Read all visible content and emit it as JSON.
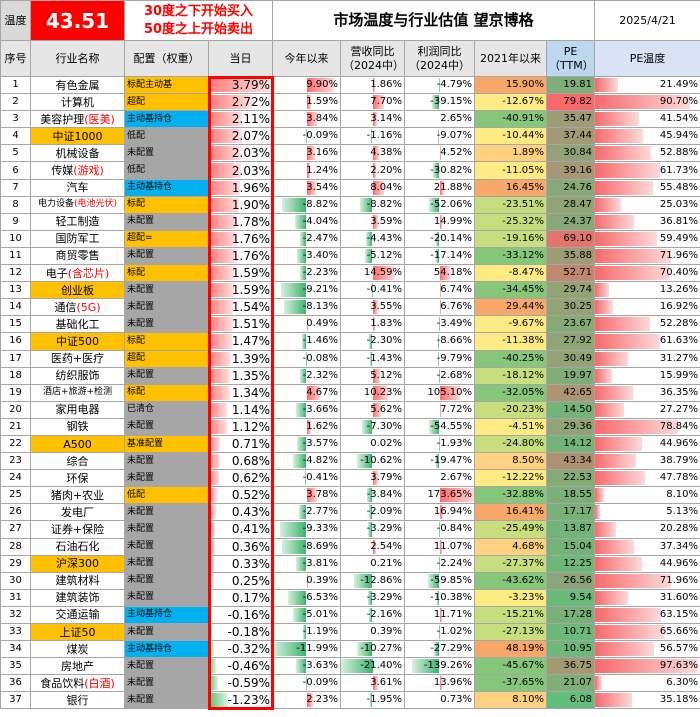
{
  "top": {
    "temp_label": "温度",
    "temp_value": "43.51",
    "line1": "30度之下开始买入",
    "line2": "50度之上开始卖出",
    "title": "市场温度与行业估值 望京博格",
    "date": "2025/4/21"
  },
  "headers": [
    "序号",
    "行业名称",
    "配置（权重）",
    "当日",
    "今年以来",
    "营收同比\n（2024中）",
    "利润同比\n（2024中）",
    "2021年以来",
    "PE\n（TTM）",
    "PE温度"
  ],
  "rows": [
    {
      "n": "1",
      "name": "有色金属",
      "cfg": "标配主动基",
      "cfgc": "#ffc000",
      "day": "3.79%",
      "ytd": "9.90%",
      "ytdv": 9.9,
      "rev": "1.86%",
      "revv": 1.86,
      "prof": "-4.79%",
      "profv": -4.79,
      "y21": "15.90%",
      "y21v": 15.9,
      "pe": "19.81",
      "pev": 19.81,
      "pt": "21.49%",
      "ptv": 21.49
    },
    {
      "n": "2",
      "name": "计算机",
      "cfg": "超配",
      "cfgc": "#ffc000",
      "day": "2.72%",
      "ytd": "1.59%",
      "ytdv": 1.59,
      "rev": "7.70%",
      "revv": 7.7,
      "prof": "-39.15%",
      "profv": -39.15,
      "y21": "-12.67%",
      "y21v": -12.67,
      "pe": "79.82",
      "pev": 79.82,
      "pt": "90.70%",
      "ptv": 90.7
    },
    {
      "n": "3",
      "name": "美容护理",
      "hl": "(医美)",
      "cfg": "主动基持仓",
      "cfgc": "#00b0f0",
      "day": "2.11%",
      "ytd": "3.84%",
      "ytdv": 3.84,
      "rev": "3.14%",
      "revv": 3.14,
      "prof": "2.65%",
      "profv": 2.65,
      "y21": "-40.91%",
      "y21v": -40.91,
      "pe": "35.47",
      "pev": 35.47,
      "pt": "41.54%",
      "ptv": 41.54
    },
    {
      "n": "4",
      "name": "中证1000",
      "namec": "#ffc000",
      "cfg": "低配",
      "cfgc": "#a6a6a6",
      "day": "2.07%",
      "ytd": "-0.09%",
      "ytdv": -0.09,
      "rev": "-1.16%",
      "revv": -1.16,
      "prof": "-9.07%",
      "profv": -9.07,
      "y21": "-10.44%",
      "y21v": -10.44,
      "pe": "37.44",
      "pev": 37.44,
      "pt": "45.94%",
      "ptv": 45.94
    },
    {
      "n": "5",
      "name": "机械设备",
      "cfg": "未配置",
      "cfgc": "#a6a6a6",
      "day": "2.03%",
      "ytd": "3.16%",
      "ytdv": 3.16,
      "rev": "4.38%",
      "revv": 4.38,
      "prof": "4.52%",
      "profv": 4.52,
      "y21": "1.89%",
      "y21v": 1.89,
      "pe": "30.84",
      "pev": 30.84,
      "pt": "52.88%",
      "ptv": 52.88
    },
    {
      "n": "6",
      "name": "传媒",
      "hl": "(游戏)",
      "cfg": "低配",
      "cfgc": "#a6a6a6",
      "day": "2.03%",
      "ytd": "1.24%",
      "ytdv": 1.24,
      "rev": "2.20%",
      "revv": 2.2,
      "prof": "-30.82%",
      "profv": -30.82,
      "y21": "-11.05%",
      "y21v": -11.05,
      "pe": "39.16",
      "pev": 39.16,
      "pt": "61.73%",
      "ptv": 61.73
    },
    {
      "n": "7",
      "name": "汽车",
      "cfg": "主动基持仓",
      "cfgc": "#00b0f0",
      "day": "1.96%",
      "ytd": "3.54%",
      "ytdv": 3.54,
      "rev": "8.04%",
      "revv": 8.04,
      "prof": "21.88%",
      "profv": 21.88,
      "y21": "16.45%",
      "y21v": 16.45,
      "pe": "24.76",
      "pev": 24.76,
      "pt": "55.48%",
      "ptv": 55.48
    },
    {
      "n": "8",
      "name": "电力设备",
      "hl": "(电池光伏)",
      "small": true,
      "cfg": "标配",
      "cfgc": "#ffc000",
      "day": "1.90%",
      "ytd": "-8.82%",
      "ytdv": -8.82,
      "rev": "-8.82%",
      "revv": -8.82,
      "prof": "-52.06%",
      "profv": -52.06,
      "y21": "-23.51%",
      "y21v": -23.51,
      "pe": "28.47",
      "pev": 28.47,
      "pt": "25.03%",
      "ptv": 25.03
    },
    {
      "n": "9",
      "name": "轻工制造",
      "cfg": "未配置",
      "cfgc": "#a6a6a6",
      "day": "1.78%",
      "ytd": "-4.04%",
      "ytdv": -4.04,
      "rev": "3.59%",
      "revv": 3.59,
      "prof": "14.99%",
      "profv": 14.99,
      "y21": "-25.32%",
      "y21v": -25.32,
      "pe": "24.37",
      "pev": 24.37,
      "pt": "36.81%",
      "ptv": 36.81
    },
    {
      "n": "10",
      "name": "国防军工",
      "cfg": "超配=",
      "cfgc": "#ffc000",
      "day": "1.76%",
      "ytd": "-2.47%",
      "ytdv": -2.47,
      "rev": "-4.43%",
      "revv": -4.43,
      "prof": "-20.14%",
      "profv": -20.14,
      "y21": "-19.16%",
      "y21v": -19.16,
      "pe": "69.10",
      "pev": 69.1,
      "pt": "59.49%",
      "ptv": 59.49
    },
    {
      "n": "11",
      "name": "商贸零售",
      "cfg": "未配置",
      "cfgc": "#a6a6a6",
      "day": "1.76%",
      "ytd": "-3.40%",
      "ytdv": -3.4,
      "rev": "-5.12%",
      "revv": -5.12,
      "prof": "-17.14%",
      "profv": -17.14,
      "y21": "-33.12%",
      "y21v": -33.12,
      "pe": "35.88",
      "pev": 35.88,
      "pt": "71.96%",
      "ptv": 71.96
    },
    {
      "n": "12",
      "name": "电子",
      "hl": "(含芯片)",
      "cfg": "标配",
      "cfgc": "#ffc000",
      "day": "1.59%",
      "ytd": "-2.23%",
      "ytdv": -2.23,
      "rev": "14.59%",
      "revv": 14.59,
      "prof": "54.18%",
      "profv": 54.18,
      "y21": "-8.47%",
      "y21v": -8.47,
      "pe": "52.71",
      "pev": 52.71,
      "pt": "70.40%",
      "ptv": 70.4
    },
    {
      "n": "13",
      "name": "创业板",
      "namec": "#ffc000",
      "cfg": "未配置",
      "cfgc": "#a6a6a6",
      "day": "1.59%",
      "ytd": "-9.21%",
      "ytdv": -9.21,
      "rev": "-0.41%",
      "revv": -0.41,
      "prof": "6.74%",
      "profv": 6.74,
      "y21": "-34.45%",
      "y21v": -34.45,
      "pe": "29.74",
      "pev": 29.74,
      "pt": "13.26%",
      "ptv": 13.26
    },
    {
      "n": "14",
      "name": "通信",
      "hl": "(5G)",
      "cfg": "未配置",
      "cfgc": "#a6a6a6",
      "day": "1.54%",
      "ytd": "-8.13%",
      "ytdv": -8.13,
      "rev": "3.55%",
      "revv": 3.55,
      "prof": "6.76%",
      "profv": 6.76,
      "y21": "29.44%",
      "y21v": 29.44,
      "pe": "30.25",
      "pev": 30.25,
      "pt": "16.92%",
      "ptv": 16.92
    },
    {
      "n": "15",
      "name": "基础化工",
      "cfg": "未配置",
      "cfgc": "#a6a6a6",
      "day": "1.51%",
      "ytd": "0.49%",
      "ytdv": 0.49,
      "rev": "1.83%",
      "revv": 1.83,
      "prof": "-3.49%",
      "profv": -3.49,
      "y21": "-9.67%",
      "y21v": -9.67,
      "pe": "23.67",
      "pev": 23.67,
      "pt": "52.28%",
      "ptv": 52.28
    },
    {
      "n": "16",
      "name": "中证500",
      "namec": "#ffc000",
      "cfg": "标配",
      "cfgc": "#ffc000",
      "day": "1.47%",
      "ytd": "-1.46%",
      "ytdv": -1.46,
      "rev": "-2.30%",
      "revv": -2.3,
      "prof": "-8.66%",
      "profv": -8.66,
      "y21": "-11.38%",
      "y21v": -11.38,
      "pe": "27.92",
      "pev": 27.92,
      "pt": "61.63%",
      "ptv": 61.63
    },
    {
      "n": "17",
      "name": "医药+医疗",
      "cfg": "超配",
      "cfgc": "#ffc000",
      "day": "1.39%",
      "ytd": "-0.08%",
      "ytdv": -0.08,
      "rev": "-1.43%",
      "revv": -1.43,
      "prof": "-9.79%",
      "profv": -9.79,
      "y21": "-40.25%",
      "y21v": -40.25,
      "pe": "30.49",
      "pev": 30.49,
      "pt": "31.27%",
      "ptv": 31.27
    },
    {
      "n": "18",
      "name": "纺织服饰",
      "cfg": "未配置",
      "cfgc": "#a6a6a6",
      "day": "1.35%",
      "ytd": "-2.32%",
      "ytdv": -2.32,
      "rev": "5.12%",
      "revv": 5.12,
      "prof": "-2.68%",
      "profv": -2.68,
      "y21": "-18.12%",
      "y21v": -18.12,
      "pe": "19.97",
      "pev": 19.97,
      "pt": "15.99%",
      "ptv": 15.99
    },
    {
      "n": "19",
      "name": "酒店+旅游+检测",
      "small": true,
      "cfg": "标配",
      "cfgc": "#ffc000",
      "day": "1.34%",
      "ytd": "4.67%",
      "ytdv": 4.67,
      "rev": "10.23%",
      "revv": 10.23,
      "prof": "105.10%",
      "profv": 105.1,
      "y21": "-32.05%",
      "y21v": -32.05,
      "pe": "42.65",
      "pev": 42.65,
      "pt": "36.35%",
      "ptv": 36.35
    },
    {
      "n": "20",
      "name": "家用电器",
      "cfg": "已清仓",
      "cfgc": "#a6a6a6",
      "day": "1.14%",
      "ytd": "-3.66%",
      "ytdv": -3.66,
      "rev": "5.62%",
      "revv": 5.62,
      "prof": "7.72%",
      "profv": 7.72,
      "y21": "-20.23%",
      "y21v": -20.23,
      "pe": "14.50",
      "pev": 14.5,
      "pt": "27.27%",
      "ptv": 27.27
    },
    {
      "n": "21",
      "name": "钢铁",
      "cfg": "未配置",
      "cfgc": "#a6a6a6",
      "day": "1.12%",
      "ytd": "1.62%",
      "ytdv": 1.62,
      "rev": "-7.30%",
      "revv": -7.3,
      "prof": "-54.55%",
      "profv": -54.55,
      "y21": "-4.51%",
      "y21v": -4.51,
      "pe": "29.36",
      "pev": 29.36,
      "pt": "78.84%",
      "ptv": 78.84
    },
    {
      "n": "22",
      "name": "A500",
      "namec": "#ffc000",
      "cfg": "基准配置",
      "cfgc": "#ffc000",
      "day": "0.71%",
      "ytd": "-3.57%",
      "ytdv": -3.57,
      "rev": "0.02%",
      "revv": 0.02,
      "prof": "-1.93%",
      "profv": -1.93,
      "y21": "-24.80%",
      "y21v": -24.8,
      "pe": "14.12",
      "pev": 14.12,
      "pt": "44.96%",
      "ptv": 44.96
    },
    {
      "n": "23",
      "name": "综合",
      "cfg": "未配置",
      "cfgc": "#a6a6a6",
      "day": "0.68%",
      "ytd": "-4.82%",
      "ytdv": -4.82,
      "rev": "-10.62%",
      "revv": -10.62,
      "prof": "-19.47%",
      "profv": -19.47,
      "y21": "8.50%",
      "y21v": 8.5,
      "pe": "43.34",
      "pev": 43.34,
      "pt": "38.79%",
      "ptv": 38.79
    },
    {
      "n": "24",
      "name": "环保",
      "cfg": "未配置",
      "cfgc": "#a6a6a6",
      "day": "0.62%",
      "ytd": "-0.41%",
      "ytdv": -0.41,
      "rev": "3.79%",
      "revv": 3.79,
      "prof": "2.67%",
      "profv": 2.67,
      "y21": "-12.22%",
      "y21v": -12.22,
      "pe": "22.53",
      "pev": 22.53,
      "pt": "47.78%",
      "ptv": 47.78
    },
    {
      "n": "25",
      "name": "猪肉+农业",
      "cfg": "低配",
      "cfgc": "#ffc000",
      "day": "0.52%",
      "ytd": "3.78%",
      "ytdv": 3.78,
      "rev": "-3.84%",
      "revv": -3.84,
      "prof": "173.65%",
      "profv": 173.65,
      "y21": "-32.88%",
      "y21v": -32.88,
      "pe": "18.55",
      "pev": 18.55,
      "pt": "8.10%",
      "ptv": 8.1
    },
    {
      "n": "26",
      "name": "发电厂",
      "cfg": "未配置",
      "cfgc": "#a6a6a6",
      "day": "0.43%",
      "ytd": "-2.77%",
      "ytdv": -2.77,
      "rev": "-2.09%",
      "revv": -2.09,
      "prof": "16.94%",
      "profv": 16.94,
      "y21": "16.41%",
      "y21v": 16.41,
      "pe": "17.17",
      "pev": 17.17,
      "pt": "5.13%",
      "ptv": 5.13
    },
    {
      "n": "27",
      "name": "证券+保险",
      "cfg": "未配置",
      "cfgc": "#a6a6a6",
      "day": "0.41%",
      "ytd": "-9.33%",
      "ytdv": -9.33,
      "rev": "-3.29%",
      "revv": -3.29,
      "prof": "-0.84%",
      "profv": -0.84,
      "y21": "-25.49%",
      "y21v": -25.49,
      "pe": "13.87",
      "pev": 13.87,
      "pt": "20.28%",
      "ptv": 20.28
    },
    {
      "n": "28",
      "name": "石油石化",
      "cfg": "未配置",
      "cfgc": "#a6a6a6",
      "day": "0.36%",
      "ytd": "-8.69%",
      "ytdv": -8.69,
      "rev": "2.54%",
      "revv": 2.54,
      "prof": "11.07%",
      "profv": 11.07,
      "y21": "4.68%",
      "y21v": 4.68,
      "pe": "15.04",
      "pev": 15.04,
      "pt": "37.34%",
      "ptv": 37.34
    },
    {
      "n": "29",
      "name": "沪深300",
      "namec": "#ffc000",
      "cfg": "未配置",
      "cfgc": "#a6a6a6",
      "day": "0.33%",
      "ytd": "-3.81%",
      "ytdv": -3.81,
      "rev": "0.21%",
      "revv": 0.21,
      "prof": "-2.24%",
      "profv": -2.24,
      "y21": "-27.37%",
      "y21v": -27.37,
      "pe": "12.25",
      "pev": 12.25,
      "pt": "44.96%",
      "ptv": 44.96
    },
    {
      "n": "30",
      "name": "建筑材料",
      "cfg": "未配置",
      "cfgc": "#a6a6a6",
      "day": "0.25%",
      "ytd": "0.39%",
      "ytdv": 0.39,
      "rev": "-12.86%",
      "revv": -12.86,
      "prof": "-59.85%",
      "profv": -59.85,
      "y21": "-43.62%",
      "y21v": -43.62,
      "pe": "26.56",
      "pev": 26.56,
      "pt": "71.96%",
      "ptv": 71.96
    },
    {
      "n": "31",
      "name": "建筑装饰",
      "cfg": "未配置",
      "cfgc": "#a6a6a6",
      "day": "0.17%",
      "ytd": "-6.53%",
      "ytdv": -6.53,
      "rev": "-3.29%",
      "revv": -3.29,
      "prof": "-10.38%",
      "profv": -10.38,
      "y21": "-3.23%",
      "y21v": -3.23,
      "pe": "9.54",
      "pev": 9.54,
      "pt": "31.60%",
      "ptv": 31.6
    },
    {
      "n": "32",
      "name": "交通运输",
      "cfg": "主动基持仓",
      "cfgc": "#00b0f0",
      "day": "-0.16%",
      "ytd": "-5.01%",
      "ytdv": -5.01,
      "rev": "-2.16%",
      "revv": -2.16,
      "prof": "11.71%",
      "profv": 11.71,
      "y21": "-15.21%",
      "y21v": -15.21,
      "pe": "17.28",
      "pev": 17.28,
      "pt": "63.15%",
      "ptv": 63.15
    },
    {
      "n": "33",
      "name": "上证50",
      "namec": "#ffc000",
      "cfg": "未配置",
      "cfgc": "#a6a6a6",
      "day": "-0.18%",
      "ytd": "-1.19%",
      "ytdv": -1.19,
      "rev": "0.39%",
      "revv": 0.39,
      "prof": "-1.02%",
      "profv": -1.02,
      "y21": "-27.13%",
      "y21v": -27.13,
      "pe": "10.71",
      "pev": 10.71,
      "pt": "65.66%",
      "ptv": 65.66
    },
    {
      "n": "34",
      "name": "煤炭",
      "cfg": "主动基持仓",
      "cfgc": "#00b0f0",
      "day": "-0.32%",
      "ytd": "-11.99%",
      "ytdv": -11.99,
      "rev": "-10.27%",
      "revv": -10.27,
      "prof": "-27.29%",
      "profv": -27.29,
      "y21": "48.19%",
      "y21v": 48.19,
      "pe": "10.95",
      "pev": 10.95,
      "pt": "56.57%",
      "ptv": 56.57
    },
    {
      "n": "35",
      "name": "房地产",
      "cfg": "未配置",
      "cfgc": "#a6a6a6",
      "day": "-0.46%",
      "ytd": "-3.63%",
      "ytdv": -3.63,
      "rev": "-21.40%",
      "revv": -21.4,
      "prof": "-139.26%",
      "profv": -139.26,
      "y21": "-45.67%",
      "y21v": -45.67,
      "pe": "36.75",
      "pev": 36.75,
      "pt": "97.63%",
      "ptv": 97.63
    },
    {
      "n": "36",
      "name": "食品饮料",
      "hl": "(白酒)",
      "cfg": "未配置",
      "cfgc": "#a6a6a6",
      "day": "-0.59%",
      "ytd": "-0.09%",
      "ytdv": -0.09,
      "rev": "3.61%",
      "revv": 3.61,
      "prof": "13.96%",
      "profv": 13.96,
      "y21": "-37.65%",
      "y21v": -37.65,
      "pe": "21.07",
      "pev": 21.07,
      "pt": "6.30%",
      "ptv": 6.3
    },
    {
      "n": "37",
      "name": "银行",
      "cfg": "未配置",
      "cfgc": "#a6a6a6",
      "day": "-1.23%",
      "ytd": "2.23%",
      "ytdv": 2.23,
      "rev": "-1.95%",
      "revv": -1.95,
      "prof": "0.73%",
      "profv": 0.73,
      "y21": "8.10%",
      "y21v": 8.1,
      "pe": "6.08",
      "pev": 6.08,
      "pt": "35.18%",
      "ptv": 35.18
    }
  ]
}
